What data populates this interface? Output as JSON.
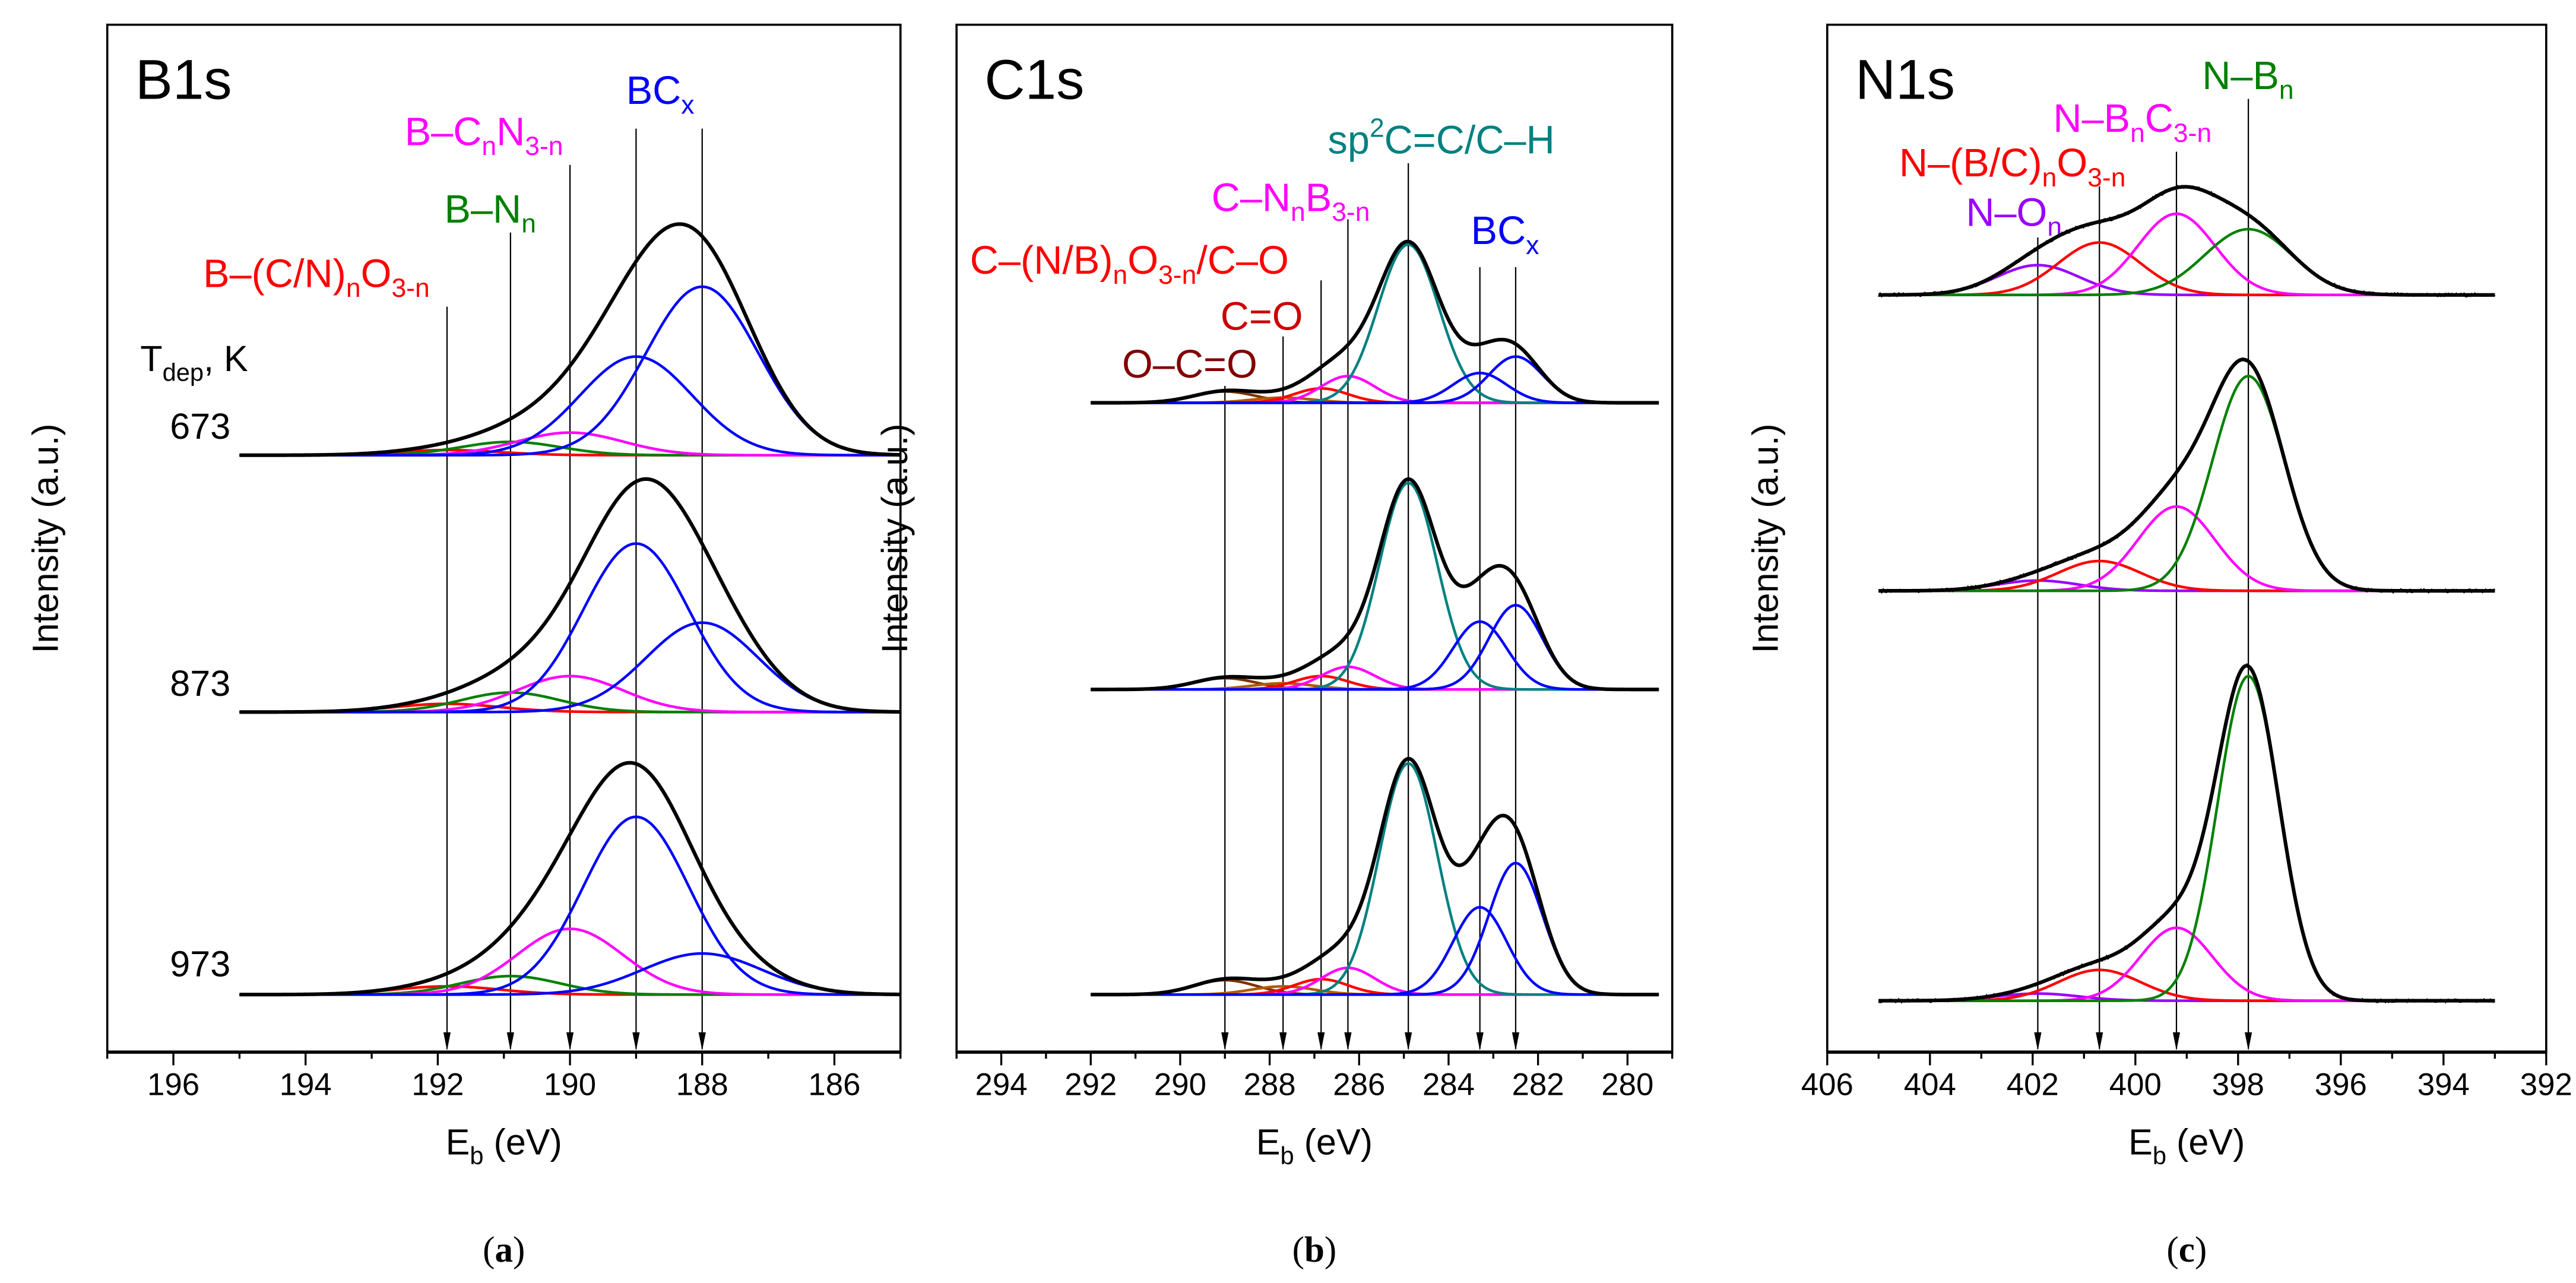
{
  "chart_data": [
    {
      "type": "line",
      "title": "B1s",
      "caption_letter": "a",
      "xlabel_main": "E",
      "xlabel_sub": "b",
      "xlabel_rest": " (eV)",
      "ylabel": "Intensity (a.u.)",
      "xlim": [
        197,
        185
      ],
      "ylim": [
        0,
        100
      ],
      "xticks": [
        196,
        194,
        192,
        190,
        188,
        186
      ],
      "range": [
        195,
        185
      ],
      "legend_title": {
        "main": "T",
        "sub": "dep",
        "rest": ", K"
      },
      "components": [
        {
          "name": "B-(C/N)nO3-n",
          "center": 191.86,
          "color": "#ff0000"
        },
        {
          "name": "B-Nn",
          "center": 190.9,
          "color": "#008000"
        },
        {
          "name": "B-CnN3-n",
          "center": 190.0,
          "color": "#ff00ff"
        },
        {
          "name": "BCx-1",
          "center": 189.0,
          "color": "#0000ff"
        },
        {
          "name": "BCx-2",
          "center": 188.0,
          "color": "#0000ff"
        }
      ],
      "spectra": [
        {
          "label": "673",
          "offset": 58.1,
          "heights": [
            0.5,
            1.3,
            2.2,
            9.6,
            16.4
          ],
          "sigmas": [
            0.8,
            0.75,
            0.8,
            0.85,
            0.85
          ]
        },
        {
          "label": "873",
          "offset": 33.1,
          "heights": [
            0.8,
            1.9,
            3.5,
            16.4,
            8.7
          ],
          "sigmas": [
            0.8,
            0.75,
            0.8,
            0.8,
            0.85
          ]
        },
        {
          "label": "973",
          "offset": 5.6,
          "heights": [
            0.8,
            1.8,
            6.4,
            17.3,
            4.0
          ],
          "sigmas": [
            0.8,
            0.75,
            0.8,
            0.8,
            0.9
          ]
        }
      ],
      "annotations": [
        {
          "color": "#0000ff",
          "lines": [
            189.0,
            188.0
          ],
          "segments": [
            {
              "t": "BC"
            },
            {
              "t": "x",
              "s": "sub"
            }
          ]
        },
        {
          "color": "#ff00ff",
          "lines": [
            190.0
          ],
          "segments": [
            {
              "t": "B–C"
            },
            {
              "t": "n",
              "s": "sub"
            },
            {
              "t": "N"
            },
            {
              "t": "3-n",
              "s": "sub"
            }
          ]
        },
        {
          "color": "#008000",
          "lines": [
            190.9
          ],
          "segments": [
            {
              "t": "B–N"
            },
            {
              "t": "n",
              "s": "sub"
            }
          ]
        },
        {
          "color": "#ff0000",
          "lines": [
            191.86
          ],
          "segments": [
            {
              "t": "B–(C/N)"
            },
            {
              "t": "n",
              "s": "sub"
            },
            {
              "t": "O"
            },
            {
              "t": "3-n",
              "s": "sub"
            }
          ]
        }
      ],
      "noise": 0
    },
    {
      "type": "line",
      "title": "C1s",
      "caption_letter": "b",
      "xlabel_main": "E",
      "xlabel_sub": "b",
      "xlabel_rest": " (eV)",
      "ylabel": "Intensity (a.u.)",
      "xlim": [
        295,
        279
      ],
      "ylim": [
        0,
        100
      ],
      "xticks": [
        294,
        292,
        290,
        288,
        286,
        284,
        282,
        280
      ],
      "range": [
        292,
        279.3
      ],
      "components": [
        {
          "name": "O-C=O",
          "center": 289.0,
          "color": "#7f3300"
        },
        {
          "name": "C=O",
          "center": 287.7,
          "color": "#b35900"
        },
        {
          "name": "C-(N/B)nO3-n/C-O",
          "center": 286.85,
          "color": "#ff0000"
        },
        {
          "name": "C-NnB3-n",
          "center": 286.25,
          "color": "#ff00ff"
        },
        {
          "name": "sp2 C=C/C-H",
          "center": 284.9,
          "color": "#008080"
        },
        {
          "name": "BCx-1",
          "center": 283.3,
          "color": "#0000ff"
        },
        {
          "name": "BCx-2",
          "center": 282.5,
          "color": "#0000ff"
        }
      ],
      "spectra": [
        {
          "label": "673",
          "offset": 63.2,
          "heights": [
            1.1,
            0.5,
            1.4,
            2.6,
            15.4,
            2.9,
            4.5
          ],
          "sigmas": [
            0.7,
            0.7,
            0.6,
            0.6,
            0.68,
            0.6,
            0.6
          ]
        },
        {
          "label": "873",
          "offset": 35.3,
          "heights": [
            1.1,
            0.6,
            1.3,
            2.2,
            20.1,
            6.6,
            8.2
          ],
          "sigmas": [
            0.7,
            0.7,
            0.6,
            0.6,
            0.65,
            0.6,
            0.6
          ]
        },
        {
          "label": "973",
          "offset": 5.6,
          "heights": [
            1.4,
            0.8,
            1.5,
            2.6,
            22.5,
            8.5,
            12.8
          ],
          "sigmas": [
            0.7,
            0.7,
            0.6,
            0.6,
            0.65,
            0.6,
            0.6
          ]
        }
      ],
      "annotations": [
        {
          "color": "#008080",
          "lines": [
            284.9
          ],
          "segments": [
            {
              "t": "sp"
            },
            {
              "t": "2",
              "s": "sup"
            },
            {
              "t": "C=C/C–H"
            }
          ]
        },
        {
          "color": "#ff00ff",
          "lines": [
            286.25
          ],
          "segments": [
            {
              "t": "C–N"
            },
            {
              "t": "n",
              "s": "sub"
            },
            {
              "t": "B"
            },
            {
              "t": "3-n",
              "s": "sub"
            }
          ]
        },
        {
          "color": "#0000ff",
          "lines": [
            283.3,
            282.5
          ],
          "segments": [
            {
              "t": "BC"
            },
            {
              "t": "x",
              "s": "sub"
            }
          ]
        },
        {
          "color": "#ff0000",
          "lines": [
            286.85
          ],
          "segments": [
            {
              "t": "C–(N/B)"
            },
            {
              "t": "n",
              "s": "sub"
            },
            {
              "t": "O"
            },
            {
              "t": "3-n",
              "s": "sub"
            },
            {
              "t": "/C–O"
            }
          ]
        },
        {
          "color": "#cc0000",
          "lines": [
            287.7
          ],
          "segments": [
            {
              "t": "C=O"
            }
          ]
        },
        {
          "color": "#800000",
          "lines": [
            289.0
          ],
          "segments": [
            {
              "t": "O–C=O"
            }
          ]
        }
      ],
      "noise": 0
    },
    {
      "type": "line",
      "title": "N1s",
      "caption_letter": "c",
      "xlabel_main": "E",
      "xlabel_sub": "b",
      "xlabel_rest": " (eV)",
      "ylabel": "Intensity (a.u.)",
      "xlim": [
        406,
        392
      ],
      "ylim": [
        0,
        100
      ],
      "xticks": [
        406,
        404,
        402,
        400,
        398,
        396,
        394,
        392
      ],
      "range": [
        405,
        393
      ],
      "components": [
        {
          "name": "N-On",
          "center": 401.9,
          "color": "#9900ff"
        },
        {
          "name": "N-(B/C)nO3-n",
          "center": 400.7,
          "color": "#ff0000"
        },
        {
          "name": "N-BnC3-n",
          "center": 399.2,
          "color": "#ff00ff"
        },
        {
          "name": "N-Bn",
          "center": 397.8,
          "color": "#008000"
        }
      ],
      "spectra": [
        {
          "label": "673",
          "offset": 73.7,
          "heights": [
            2.9,
            5.1,
            7.9,
            6.4
          ],
          "sigmas": [
            0.8,
            0.8,
            0.75,
            0.85
          ]
        },
        {
          "label": "873",
          "offset": 44.9,
          "heights": [
            1.0,
            2.9,
            8.2,
            20.9
          ],
          "sigmas": [
            0.8,
            0.8,
            0.75,
            0.7
          ]
        },
        {
          "label": "973",
          "offset": 5.0,
          "heights": [
            0.7,
            3.0,
            7.1,
            31.6
          ],
          "sigmas": [
            0.8,
            0.8,
            0.7,
            0.6
          ]
        }
      ],
      "annotations": [
        {
          "color": "#008000",
          "lines": [
            397.8
          ],
          "segments": [
            {
              "t": "N–B"
            },
            {
              "t": "n",
              "s": "sub"
            }
          ]
        },
        {
          "color": "#ff00ff",
          "lines": [
            399.2
          ],
          "segments": [
            {
              "t": "N–B"
            },
            {
              "t": "n",
              "s": "sub"
            },
            {
              "t": "C"
            },
            {
              "t": "3-n",
              "s": "sub"
            }
          ]
        },
        {
          "color": "#ff0000",
          "lines": [
            400.7
          ],
          "segments": [
            {
              "t": "N–(B/C)"
            },
            {
              "t": "n",
              "s": "sub"
            },
            {
              "t": "O"
            },
            {
              "t": "3-n",
              "s": "sub"
            }
          ]
        },
        {
          "color": "#9900ff",
          "lines": [
            401.9
          ],
          "segments": [
            {
              "t": "N–O"
            },
            {
              "t": "n",
              "s": "sub"
            }
          ]
        }
      ],
      "noise": 0.35
    }
  ]
}
